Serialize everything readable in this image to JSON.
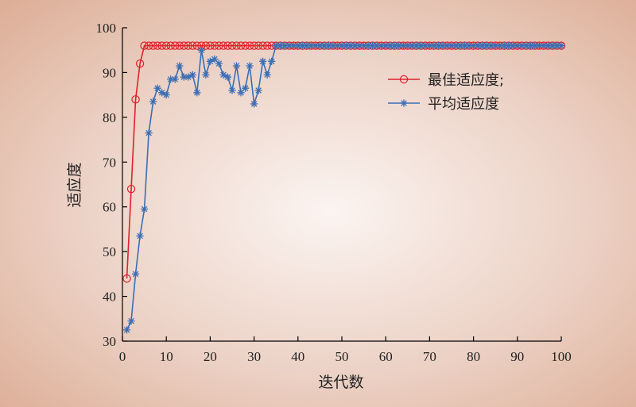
{
  "chart_data": {
    "type": "line",
    "xlabel": "迭代数",
    "ylabel": "适应度",
    "xlim": [
      0,
      100
    ],
    "ylim": [
      30,
      100
    ],
    "xticks": [
      0,
      10,
      20,
      30,
      40,
      50,
      60,
      70,
      80,
      90,
      100
    ],
    "yticks": [
      30,
      40,
      50,
      60,
      70,
      80,
      90,
      100
    ],
    "legend_position": "upper-right",
    "grid": false,
    "series": [
      {
        "name": "最佳适应度;",
        "color": "#e0202a",
        "marker": "circle",
        "x": [
          1,
          2,
          3,
          4,
          5,
          6,
          7,
          8,
          9,
          10,
          11,
          12,
          13,
          14,
          15,
          16,
          17,
          18,
          19,
          20,
          21,
          22,
          23,
          24,
          25,
          26,
          27,
          28,
          29,
          30,
          31,
          32,
          33,
          34,
          35,
          36,
          37,
          38,
          39,
          40,
          41,
          42,
          43,
          44,
          45,
          46,
          47,
          48,
          49,
          50,
          51,
          52,
          53,
          54,
          55,
          56,
          57,
          58,
          59,
          60,
          61,
          62,
          63,
          64,
          65,
          66,
          67,
          68,
          69,
          70,
          71,
          72,
          73,
          74,
          75,
          76,
          77,
          78,
          79,
          80,
          81,
          82,
          83,
          84,
          85,
          86,
          87,
          88,
          89,
          90,
          91,
          92,
          93,
          94,
          95,
          96,
          97,
          98,
          99,
          100
        ],
        "y": [
          44,
          64,
          84,
          92,
          96,
          96,
          96,
          96,
          96,
          96,
          96,
          96,
          96,
          96,
          96,
          96,
          96,
          96,
          96,
          96,
          96,
          96,
          96,
          96,
          96,
          96,
          96,
          96,
          96,
          96,
          96,
          96,
          96,
          96,
          96,
          96,
          96,
          96,
          96,
          96,
          96,
          96,
          96,
          96,
          96,
          96,
          96,
          96,
          96,
          96,
          96,
          96,
          96,
          96,
          96,
          96,
          96,
          96,
          96,
          96,
          96,
          96,
          96,
          96,
          96,
          96,
          96,
          96,
          96,
          96,
          96,
          96,
          96,
          96,
          96,
          96,
          96,
          96,
          96,
          96,
          96,
          96,
          96,
          96,
          96,
          96,
          96,
          96,
          96,
          96,
          96,
          96,
          96,
          96,
          96,
          96,
          96,
          96,
          96,
          96
        ]
      },
      {
        "name": "平均适应度",
        "color": "#3b6eb5",
        "marker": "star",
        "x": [
          1,
          2,
          3,
          4,
          5,
          6,
          7,
          8,
          9,
          10,
          11,
          12,
          13,
          14,
          15,
          16,
          17,
          18,
          19,
          20,
          21,
          22,
          23,
          24,
          25,
          26,
          27,
          28,
          29,
          30,
          31,
          32,
          33,
          34,
          35,
          36,
          37,
          38,
          39,
          40,
          41,
          42,
          43,
          44,
          45,
          46,
          47,
          48,
          49,
          50,
          51,
          52,
          53,
          54,
          55,
          56,
          57,
          58,
          59,
          60,
          61,
          62,
          63,
          64,
          65,
          66,
          67,
          68,
          69,
          70,
          71,
          72,
          73,
          74,
          75,
          76,
          77,
          78,
          79,
          80,
          81,
          82,
          83,
          84,
          85,
          86,
          87,
          88,
          89,
          90,
          91,
          92,
          93,
          94,
          95,
          96,
          97,
          98,
          99,
          100
        ],
        "y": [
          32.5,
          34.5,
          45,
          53.5,
          59.5,
          76.5,
          83.5,
          86.5,
          85.5,
          85,
          88.5,
          88.5,
          91.5,
          89,
          89,
          89.5,
          85.5,
          95,
          89.5,
          92.5,
          93,
          92,
          89.5,
          89,
          86,
          91.5,
          85.5,
          86.5,
          91.5,
          83,
          86,
          92.5,
          89.5,
          92.5,
          96,
          96,
          96,
          96,
          96,
          96,
          96,
          96,
          96,
          96,
          96,
          96,
          96,
          96,
          96,
          96,
          96,
          96,
          96,
          96,
          96,
          96,
          96,
          96,
          96,
          96,
          96,
          96,
          96,
          96,
          96,
          96,
          96,
          96,
          96,
          96,
          96,
          96,
          96,
          96,
          96,
          96,
          96,
          96,
          96,
          96,
          96,
          96,
          96,
          96,
          96,
          96,
          96,
          96,
          96,
          96,
          96,
          96,
          96,
          96,
          96,
          96,
          96,
          96,
          96,
          96
        ]
      }
    ]
  }
}
